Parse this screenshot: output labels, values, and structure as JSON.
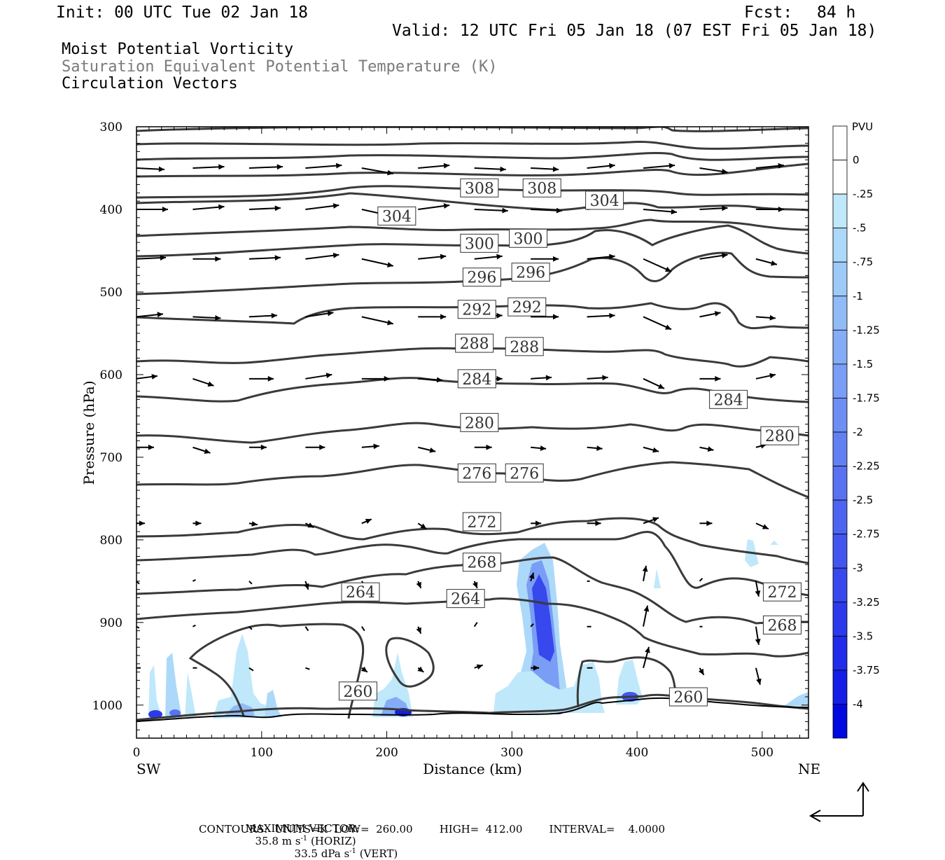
{
  "header": {
    "init": "Init: 00 UTC Tue 02 Jan 18",
    "fcst_label": "Fcst:",
    "fcst_value": "84 h",
    "valid": "Valid: 12 UTC Fri 05 Jan 18 (07 EST Fri 05 Jan 18)",
    "fields": [
      {
        "text": "Moist Potential Vorticity",
        "color": "#000000"
      },
      {
        "text": "Saturation Equivalent Potential Temperature (K)",
        "color": "#7a7a7a"
      },
      {
        "text": "Circulation Vectors",
        "color": "#000000"
      }
    ]
  },
  "footer": {
    "max_vector_label": "MAXIMUM VECTOR:",
    "horiz_value": "35.8 m s",
    "horiz_unit_tail": "(HORIZ)",
    "vert_value": "33.5 dPa s",
    "vert_unit_tail": "(VERT)",
    "contours_line": "CONTOURS:  UNITS=K  LOW=  260.00        HIGH=  412.00        INTERVAL=    4.0000"
  },
  "chart_data": {
    "type": "cross-section",
    "xlabel": "Distance (km)",
    "ylabel": "Pressure (hPa)",
    "x_left_label": "SW",
    "x_right_label": "NE",
    "xlim": [
      0,
      537
    ],
    "ylim": [
      1040,
      300
    ],
    "x_ticks": [
      0,
      100,
      200,
      300,
      400,
      500
    ],
    "y_ticks": [
      300,
      400,
      500,
      600,
      700,
      800,
      900,
      1000
    ],
    "colorbar": {
      "unit": "PVU",
      "labels": [
        "0",
        "-.25",
        "-.5",
        "-.75",
        "-1",
        "-1.25",
        "-1.5",
        "-1.75",
        "-2",
        "-2.25",
        "-2.5",
        "-2.75",
        "-3",
        "-3.25",
        "-3.5",
        "-3.75",
        "-4"
      ],
      "colors": [
        "#ffffff",
        "#ffffff",
        "#c0e8fb",
        "#acd9f9",
        "#9ecaf8",
        "#91bbf7",
        "#85acf6",
        "#7a9df5",
        "#6e8ef4",
        "#6380f3",
        "#5872f2",
        "#4d64f1",
        "#4256ef",
        "#3748ed",
        "#2c3aeb",
        "#202ce9",
        "#141ee6",
        "#0008e0"
      ]
    },
    "theta_es_contours": [
      {
        "value": 260,
        "labels": [
          {
            "x": 177,
            "p": 983
          },
          {
            "x": 441,
            "p": 990
          }
        ]
      },
      {
        "value": 264,
        "labels": [
          {
            "x": 179,
            "p": 863
          },
          {
            "x": 263,
            "p": 871
          }
        ]
      },
      {
        "value": 268,
        "labels": [
          {
            "x": 276,
            "p": 827
          },
          {
            "x": 516,
            "p": 903
          }
        ]
      },
      {
        "value": 272,
        "labels": [
          {
            "x": 276,
            "p": 778
          },
          {
            "x": 516,
            "p": 863
          }
        ]
      },
      {
        "value": 276,
        "labels": [
          {
            "x": 272,
            "p": 719
          },
          {
            "x": 310,
            "p": 719
          }
        ]
      },
      {
        "value": 280,
        "labels": [
          {
            "x": 274,
            "p": 658
          },
          {
            "x": 514,
            "p": 674
          }
        ]
      },
      {
        "value": 284,
        "labels": [
          {
            "x": 272,
            "p": 605
          },
          {
            "x": 473,
            "p": 630
          }
        ]
      },
      {
        "value": 288,
        "labels": [
          {
            "x": 270,
            "p": 562
          },
          {
            "x": 310,
            "p": 566
          }
        ]
      },
      {
        "value": 292,
        "labels": [
          {
            "x": 272,
            "p": 521
          },
          {
            "x": 312,
            "p": 518
          }
        ]
      },
      {
        "value": 296,
        "labels": [
          {
            "x": 276,
            "p": 482
          },
          {
            "x": 315,
            "p": 476
          }
        ]
      },
      {
        "value": 300,
        "labels": [
          {
            "x": 274,
            "p": 441
          },
          {
            "x": 313,
            "p": 435
          }
        ]
      },
      {
        "value": 304,
        "labels": [
          {
            "x": 208,
            "p": 408
          },
          {
            "x": 374,
            "p": 389
          }
        ]
      },
      {
        "value": 308,
        "labels": [
          {
            "x": 274,
            "p": 374
          },
          {
            "x": 324,
            "p": 374
          }
        ]
      }
    ],
    "pv_regions": [
      {
        "x_center": 324,
        "p_top": 810,
        "p_bottom": 1010,
        "min_pv": -4.0
      },
      {
        "x_center": 213,
        "p_top": 960,
        "p_bottom": 1012,
        "min_pv": -4.0
      },
      {
        "x_center": 15,
        "p_top": 955,
        "p_bottom": 1015,
        "min_pv": -4.0
      },
      {
        "x_center": 90,
        "p_top": 930,
        "p_bottom": 1012,
        "min_pv": -1.5
      },
      {
        "x_center": 396,
        "p_top": 955,
        "p_bottom": 1000,
        "min_pv": -3.0
      },
      {
        "x_center": 490,
        "p_top": 800,
        "p_bottom": 830,
        "min_pv": -0.5
      }
    ]
  }
}
